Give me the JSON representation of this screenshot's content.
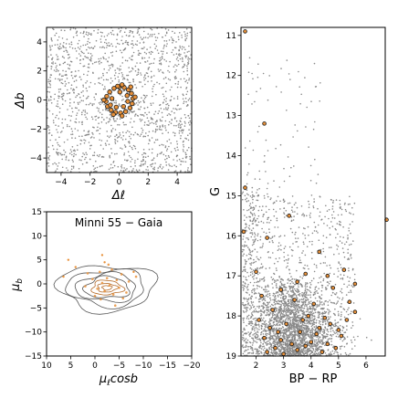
{
  "colors": {
    "field": "#8a8a8a",
    "member_fill": "#e8913a",
    "member_edge": "#1a1a1a",
    "contour": "#555555",
    "contour_inner": "#b36a2a"
  },
  "chart_data": [
    {
      "id": "sky",
      "type": "scatter",
      "xlabel": "Δℓ",
      "ylabel": "Δb",
      "xlim": [
        -5,
        5
      ],
      "ylim": [
        -5,
        5
      ],
      "xticks": [
        -4,
        -2,
        0,
        2,
        4
      ],
      "yticks": [
        -4,
        -2,
        0,
        2,
        4
      ],
      "xtick_labels": [
        "−4",
        "−2",
        "0",
        "2",
        "4"
      ],
      "ytick_labels": [
        "−4",
        "−2",
        "0",
        "2",
        "4"
      ],
      "grid": false,
      "field_stars": "uniform field of ~1500 grey points filling the square",
      "members": [
        [
          0.0,
          0.9
        ],
        [
          0.35,
          0.85
        ],
        [
          0.65,
          0.7
        ],
        [
          0.85,
          0.45
        ],
        [
          0.95,
          0.1
        ],
        [
          0.9,
          -0.25
        ],
        [
          0.75,
          -0.55
        ],
        [
          0.45,
          -0.8
        ],
        [
          0.1,
          -0.9
        ],
        [
          -0.25,
          -0.85
        ],
        [
          -0.55,
          -0.7
        ],
        [
          -0.8,
          -0.45
        ],
        [
          -0.9,
          -0.1
        ],
        [
          -0.85,
          0.25
        ],
        [
          -0.65,
          0.55
        ],
        [
          -0.35,
          0.8
        ],
        [
          -0.1,
          0.95
        ],
        [
          0.2,
          1.05
        ],
        [
          0.55,
          0.3
        ],
        [
          -0.5,
          0.1
        ],
        [
          0.3,
          -0.45
        ],
        [
          -0.2,
          -0.5
        ],
        [
          0.6,
          -0.1
        ],
        [
          -0.6,
          -0.35
        ],
        [
          0.05,
          0.55
        ],
        [
          1.1,
          0.2
        ],
        [
          -1.05,
          0.0
        ],
        [
          0.2,
          -1.1
        ],
        [
          -0.4,
          -1.0
        ],
        [
          0.8,
          0.9
        ]
      ]
    },
    {
      "id": "pm",
      "type": "scatter",
      "title": "Minni 55  −  Gaia",
      "xlabel": "μℓcosb",
      "ylabel": "μb",
      "xlim": [
        10,
        -20
      ],
      "ylim": [
        -15,
        15
      ],
      "xticks": [
        10,
        5,
        0,
        -5,
        -10,
        -15,
        -20
      ],
      "yticks": [
        -15,
        -10,
        -5,
        0,
        5,
        10,
        15
      ],
      "xtick_labels": [
        "10",
        "5",
        "0",
        "−5",
        "−10",
        "−15",
        "−20"
      ],
      "ytick_labels": [
        "−15",
        "−10",
        "−5",
        "0",
        "5",
        "10",
        "15"
      ],
      "grid": false,
      "contour_center": [
        -2.5,
        -0.8
      ],
      "contour_radii": [
        [
          10.0,
          4.8
        ],
        [
          8.0,
          3.8
        ],
        [
          6.2,
          2.9
        ],
        [
          4.6,
          2.2
        ],
        [
          3.2,
          1.5
        ],
        [
          2.0,
          0.9
        ],
        [
          1.0,
          0.45
        ]
      ],
      "members": [
        [
          -3.5,
          3.0
        ],
        [
          -1.0,
          2.5
        ],
        [
          -5.5,
          2.0
        ],
        [
          -2.5,
          1.2
        ],
        [
          0.5,
          1.0
        ],
        [
          -4.5,
          0.8
        ],
        [
          -7.0,
          0.5
        ],
        [
          -1.5,
          0.2
        ],
        [
          -3.0,
          -0.3
        ],
        [
          2.0,
          -0.5
        ],
        [
          -5.0,
          -0.8
        ],
        [
          -0.5,
          -1.0
        ],
        [
          -2.0,
          -1.5
        ],
        [
          -6.5,
          -1.8
        ],
        [
          -3.8,
          -2.2
        ],
        [
          0.0,
          -2.5
        ],
        [
          -1.2,
          -3.2
        ],
        [
          -4.2,
          -4.5
        ],
        [
          -8.5,
          1.5
        ],
        [
          1.5,
          2.2
        ],
        [
          -2.8,
          4.0
        ],
        [
          -5.8,
          -3.0
        ]
      ],
      "outer_points": [
        [
          5.5,
          5.0
        ],
        [
          4.0,
          3.5
        ],
        [
          6.5,
          1.5
        ],
        [
          -8.0,
          2.5
        ],
        [
          -1.5,
          6.0
        ],
        [
          -2.0,
          4.5
        ]
      ]
    },
    {
      "id": "cmd",
      "type": "scatter",
      "xlabel": "BP − RP",
      "ylabel": "G",
      "xlim": [
        1.45,
        6.7
      ],
      "ylim": [
        19.0,
        10.8
      ],
      "xticks": [
        2,
        3,
        4,
        5,
        6
      ],
      "yticks": [
        11,
        12,
        13,
        14,
        15,
        16,
        17,
        18,
        19
      ],
      "xtick_labels": [
        "2",
        "3",
        "4",
        "5",
        "6"
      ],
      "ytick_labels": [
        "11",
        "12",
        "13",
        "14",
        "15",
        "16",
        "17",
        "18",
        "19"
      ],
      "grid": false,
      "field_stars": "grey points, sparse above G≈15, dense clump at BP−RP 2–5, G 17–19",
      "members": [
        [
          1.6,
          10.9
        ],
        [
          2.3,
          13.2
        ],
        [
          1.6,
          14.8
        ],
        [
          3.2,
          15.5
        ],
        [
          2.4,
          16.05
        ],
        [
          1.55,
          15.9
        ],
        [
          6.75,
          15.6
        ],
        [
          2.0,
          16.9
        ],
        [
          4.3,
          16.4
        ],
        [
          3.8,
          16.95
        ],
        [
          4.6,
          17.0
        ],
        [
          5.2,
          16.85
        ],
        [
          5.6,
          17.2
        ],
        [
          3.5,
          17.15
        ],
        [
          2.9,
          17.35
        ],
        [
          4.8,
          17.3
        ],
        [
          2.2,
          17.5
        ],
        [
          3.4,
          17.6
        ],
        [
          4.1,
          17.7
        ],
        [
          5.4,
          17.65
        ],
        [
          2.6,
          17.85
        ],
        [
          3.9,
          18.0
        ],
        [
          4.5,
          18.05
        ],
        [
          2.1,
          18.1
        ],
        [
          3.1,
          18.2
        ],
        [
          4.7,
          18.2
        ],
        [
          5.0,
          18.35
        ],
        [
          2.5,
          18.3
        ],
        [
          3.6,
          18.4
        ],
        [
          4.2,
          18.45
        ],
        [
          2.3,
          18.55
        ],
        [
          2.9,
          18.6
        ],
        [
          3.3,
          18.7
        ],
        [
          4.0,
          18.65
        ],
        [
          4.6,
          18.7
        ],
        [
          5.1,
          18.5
        ],
        [
          2.7,
          18.8
        ],
        [
          3.5,
          18.85
        ],
        [
          4.4,
          18.9
        ],
        [
          3.8,
          18.75
        ],
        [
          2.4,
          18.9
        ],
        [
          4.9,
          18.8
        ],
        [
          3.0,
          18.95
        ],
        [
          5.6,
          17.9
        ],
        [
          4.3,
          18.3
        ],
        [
          3.7,
          18.1
        ],
        [
          2.8,
          18.4
        ],
        [
          5.3,
          18.1
        ]
      ]
    }
  ]
}
